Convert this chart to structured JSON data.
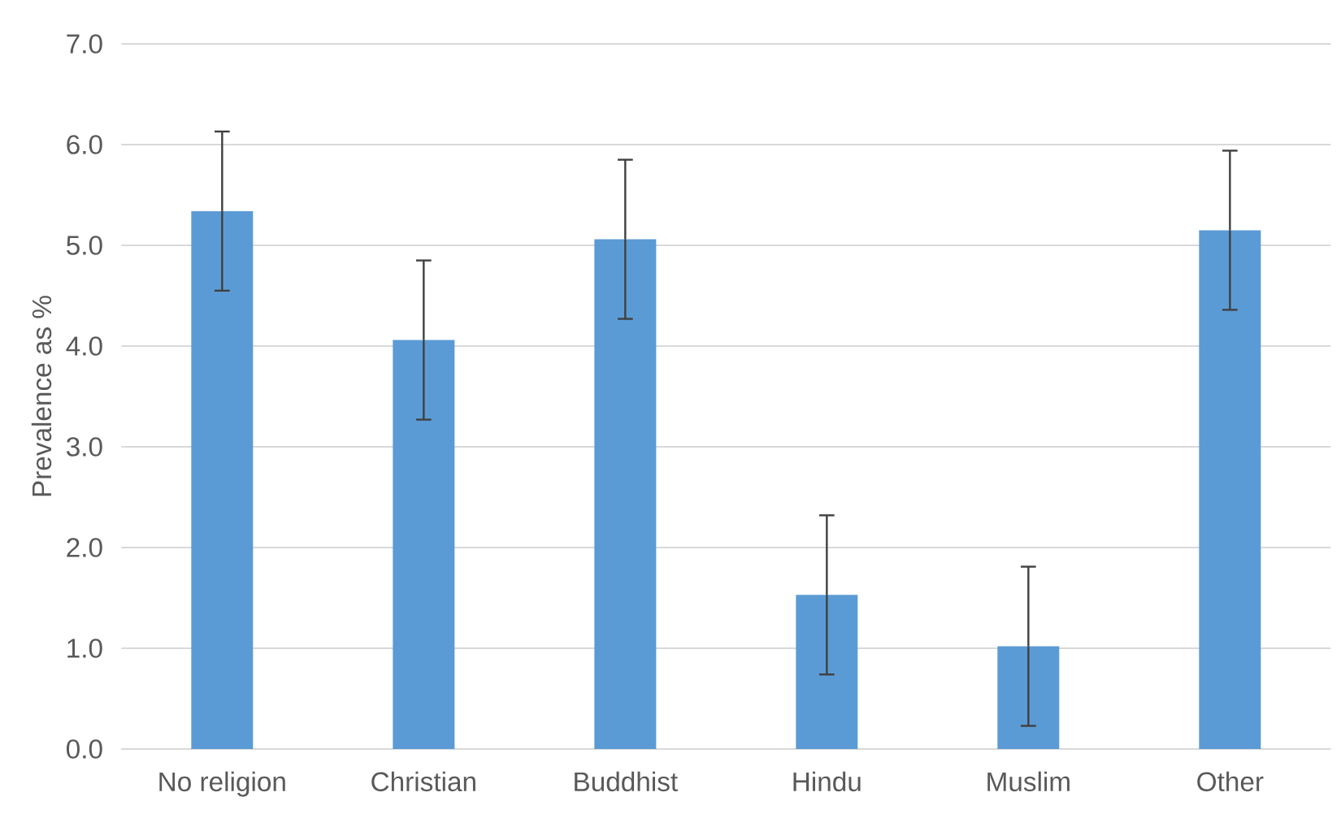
{
  "chart_data": {
    "type": "bar",
    "ylabel": "Prevalence as %",
    "categories": [
      "No religion",
      "Christian",
      "Buddhist",
      "Hindu",
      "Muslim",
      "Other"
    ],
    "values": [
      5.34,
      4.06,
      5.06,
      1.53,
      1.02,
      5.15
    ],
    "errors": [
      0.79,
      0.79,
      0.79,
      0.79,
      0.79,
      0.79
    ],
    "color": "#5b9bd5",
    "ylim": [
      0,
      7
    ],
    "yticks": [
      {
        "value": 0,
        "label": "0.0"
      },
      {
        "value": 1,
        "label": "1.0"
      },
      {
        "value": 2,
        "label": "2.0"
      },
      {
        "value": 3,
        "label": "3.0"
      },
      {
        "value": 4,
        "label": "4.0"
      },
      {
        "value": 5,
        "label": "5.0"
      },
      {
        "value": 6,
        "label": "6.0"
      },
      {
        "value": 7,
        "label": "7.0"
      }
    ],
    "grid": "y"
  }
}
